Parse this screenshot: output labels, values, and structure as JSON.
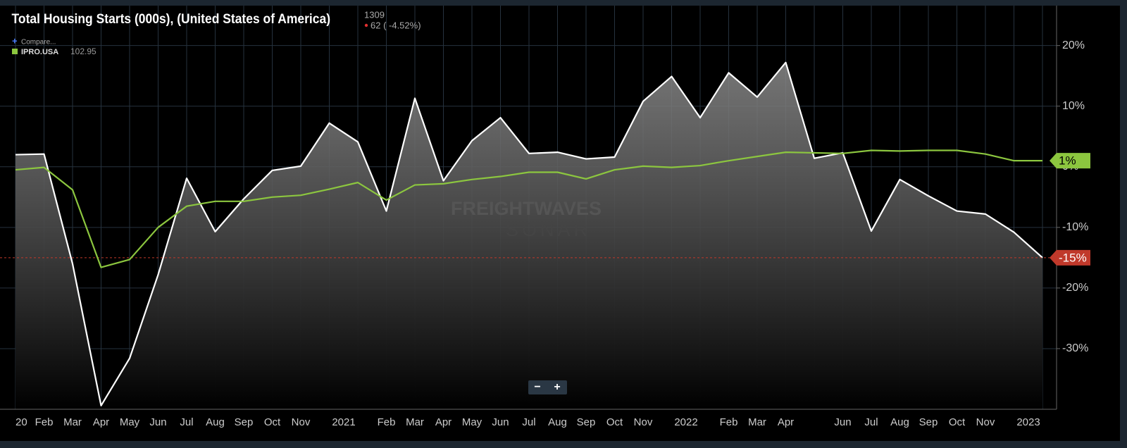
{
  "chart_data": {
    "type": "line",
    "title": "Total Housing Starts (000s), (United States of America)",
    "last_value": "1309",
    "change": "62 ( -4.52%)",
    "compare": "Compare...",
    "compare_symbol": "IPRO.USA",
    "compare_value": "102.95",
    "watermark": [
      "FREIGHTWAVES",
      "SONAR"
    ],
    "controls": [
      "−",
      "+"
    ],
    "categories": [
      "20",
      "Feb",
      "Mar",
      "Apr",
      "May",
      "Jun",
      "Jul",
      "Aug",
      "Sep",
      "Oct",
      "Nov",
      null,
      "2021",
      "Feb",
      "Mar",
      "Apr",
      "May",
      "Jun",
      "Jul",
      "Aug",
      "Sep",
      "Oct",
      "Nov",
      null,
      "2022",
      "Feb",
      "Mar",
      "Apr",
      null,
      "Jun",
      "Jul",
      "Aug",
      "Sep",
      "Oct",
      "Nov",
      null,
      "2023"
    ],
    "series": [
      {
        "name": "Total Housing Starts",
        "color": "#ffffff",
        "area": true,
        "badge_color": "#c0392b",
        "values": [
          2.0,
          2.1,
          -16,
          -39.4,
          -31.6,
          -17.8,
          -1.9,
          -10.7,
          -5.3,
          -0.6,
          0.1,
          7.2,
          4.1,
          -7.3,
          11.3,
          -2.3,
          4.3,
          8.1,
          2.2,
          2.4,
          1.3,
          1.6,
          10.8,
          14.9,
          8.1,
          15.5,
          11.5,
          17.2,
          1.4,
          2.3,
          -10.6,
          -2.1,
          -4.8,
          -7.3,
          -7.8,
          -10.8,
          -15
        ],
        "value_labels": [
          null,
          null,
          null,
          null,
          null,
          null,
          null,
          null,
          null,
          null,
          null,
          null,
          null,
          null,
          null,
          null,
          null,
          null,
          null,
          null,
          null,
          null,
          null,
          null,
          null,
          null,
          null,
          null,
          null,
          null,
          null,
          null,
          null,
          null,
          null,
          null,
          "-15%"
        ]
      },
      {
        "name": "IPRO.USA",
        "color": "#8cc63f",
        "area": false,
        "badge_color": "#8cc63f",
        "values": [
          -0.5,
          -0.1,
          -3.8,
          -16.6,
          -15.3,
          -10,
          -6.5,
          -5.7,
          -5.7,
          -5,
          -4.7,
          -3.7,
          -2.6,
          -5.5,
          -3,
          -2.8,
          -2.1,
          -1.6,
          -0.9,
          -0.9,
          -2,
          -0.5,
          0.1,
          -0.1,
          0.2,
          1,
          1.7,
          2.4,
          2.3,
          2.2,
          2.7,
          2.6,
          2.7,
          2.7,
          2.1,
          1,
          1
        ],
        "value_labels": [
          null,
          null,
          null,
          null,
          null,
          null,
          null,
          null,
          null,
          null,
          null,
          null,
          null,
          null,
          null,
          null,
          null,
          null,
          null,
          null,
          null,
          null,
          null,
          null,
          null,
          null,
          null,
          null,
          null,
          null,
          null,
          null,
          null,
          null,
          null,
          null,
          "1%"
        ]
      }
    ],
    "ylim": [
      -40,
      26
    ],
    "yticks": [
      {
        "value": 20,
        "label": "20%"
      },
      {
        "value": 10,
        "label": "10%"
      },
      {
        "value": 0,
        "label": "0%"
      },
      {
        "value": -10,
        "label": "-10%"
      },
      {
        "value": -20,
        "label": "-20%"
      },
      {
        "value": -30,
        "label": "-30%"
      }
    ],
    "grid": true
  }
}
